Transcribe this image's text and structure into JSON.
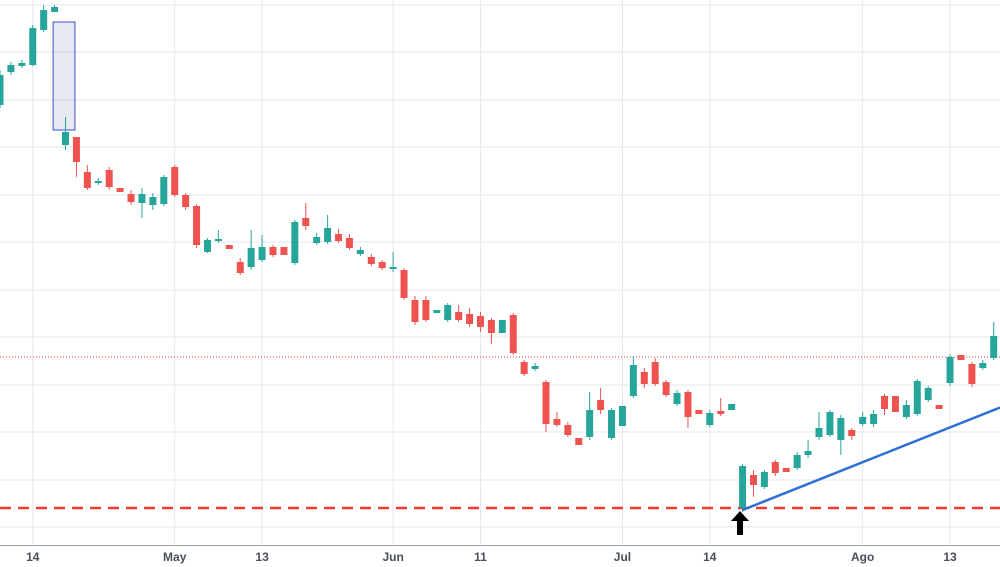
{
  "chart_data": {
    "type": "candlestick",
    "categories": [
      null,
      null,
      null,
      "14",
      null,
      null,
      null,
      null,
      null,
      null,
      null,
      null,
      null,
      null,
      null,
      null,
      "May",
      null,
      null,
      null,
      null,
      null,
      null,
      null,
      "13",
      null,
      null,
      null,
      null,
      null,
      null,
      null,
      null,
      null,
      null,
      null,
      "Jun",
      null,
      null,
      null,
      null,
      null,
      null,
      null,
      "11",
      null,
      null,
      null,
      null,
      null,
      null,
      null,
      null,
      null,
      null,
      null,
      null,
      "Jul",
      null,
      null,
      null,
      null,
      null,
      null,
      null,
      "14",
      null,
      null,
      null,
      null,
      null,
      null,
      null,
      null,
      null,
      null,
      null,
      null,
      null,
      "Ago",
      null,
      null,
      null,
      null,
      null,
      null,
      null,
      "13",
      null,
      null,
      null,
      null
    ],
    "open": [
      440,
      473,
      479,
      480,
      515,
      533,
      400,
      408,
      373,
      362,
      375,
      357,
      351,
      342,
      340,
      341,
      378,
      350,
      339,
      293,
      304,
      300,
      283,
      278,
      285,
      298,
      298,
      282,
      327,
      302,
      303,
      311,
      307,
      291,
      288,
      283,
      276,
      275,
      245,
      245,
      232,
      225,
      233,
      231,
      229,
      225,
      212,
      230,
      183,
      176,
      163,
      126,
      120,
      107,
      108,
      145,
      107,
      119,
      149,
      173,
      183,
      163,
      141,
      153,
      135,
      120,
      134,
      135,
      37,
      70,
      58,
      83,
      77,
      77,
      90,
      108,
      110,
      105,
      115,
      121,
      121,
      149,
      149,
      128,
      131,
      145,
      140,
      162,
      190,
      181,
      177,
      187
    ],
    "high": [
      475,
      483,
      485,
      520,
      540,
      540,
      428,
      408,
      380,
      367,
      378,
      357,
      355,
      357,
      352,
      370,
      380,
      352,
      341,
      307,
      315,
      300,
      287,
      315,
      310,
      300,
      298,
      325,
      342,
      312,
      330,
      316,
      311,
      298,
      291,
      285,
      293,
      277,
      249,
      249,
      235,
      242,
      240,
      237,
      233,
      227,
      225,
      232,
      185,
      182,
      165,
      133,
      123,
      107,
      153,
      157,
      137,
      139,
      189,
      177,
      187,
      165,
      155,
      155,
      135,
      135,
      147,
      141,
      81,
      75,
      75,
      85,
      77,
      93,
      105,
      133,
      135,
      130,
      117,
      133,
      135,
      151,
      149,
      145,
      166,
      159,
      140,
      191,
      190,
      183,
      185,
      223
    ],
    "low": [
      437,
      470,
      477,
      479,
      513,
      533,
      395,
      368,
      355,
      360,
      355,
      353,
      340,
      327,
      335,
      339,
      348,
      335,
      297,
      292,
      302,
      296,
      270,
      275,
      283,
      288,
      290,
      280,
      315,
      300,
      301,
      302,
      295,
      289,
      279,
      275,
      273,
      245,
      220,
      223,
      232,
      223,
      223,
      218,
      213,
      201,
      212,
      190,
      169,
      174,
      113,
      118,
      108,
      100,
      105,
      131,
      105,
      119,
      147,
      157,
      159,
      148,
      139,
      117,
      131,
      118,
      129,
      135,
      33,
      48,
      56,
      69,
      73,
      75,
      87,
      105,
      108,
      90,
      105,
      119,
      118,
      130,
      133,
      126,
      129,
      143,
      136,
      159,
      185,
      158,
      175,
      185
    ],
    "close": [
      470,
      480,
      482,
      517,
      535,
      538,
      413,
      383,
      357,
      364,
      358,
      353,
      343,
      351,
      348,
      368,
      350,
      338,
      300,
      305,
      306,
      296,
      272,
      297,
      298,
      290,
      290,
      323,
      319,
      308,
      317,
      304,
      297,
      295,
      281,
      277,
      278,
      247,
      223,
      225,
      235,
      240,
      225,
      221,
      218,
      212,
      225,
      192,
      171,
      179,
      121,
      120,
      110,
      100,
      135,
      135,
      135,
      139,
      180,
      161,
      161,
      150,
      152,
      128,
      131,
      132,
      131,
      141,
      79,
      60,
      73,
      72,
      73,
      90,
      94,
      117,
      133,
      127,
      109,
      128,
      131,
      136,
      133,
      140,
      164,
      157,
      136,
      188,
      185,
      161,
      182,
      209
    ],
    "up_color": "#26a69a",
    "down_color": "#ef5350",
    "ylim": [
      0,
      545
    ],
    "yticks": [
      18,
      65,
      113,
      160,
      208,
      255,
      303,
      350,
      398,
      445,
      493,
      540
    ],
    "grid": true,
    "hlines": [
      {
        "value": 188,
        "color": "#e53935",
        "style": "dotted"
      },
      {
        "value": 37,
        "color": "#f23a2f",
        "style": "dashed"
      }
    ],
    "trendline": {
      "x": [
        68,
        91
      ],
      "values": [
        35,
        135
      ],
      "color": "#2e6fd6"
    },
    "box": {
      "values": [
        415,
        523
      ],
      "color": "#3d4fd9"
    }
  }
}
